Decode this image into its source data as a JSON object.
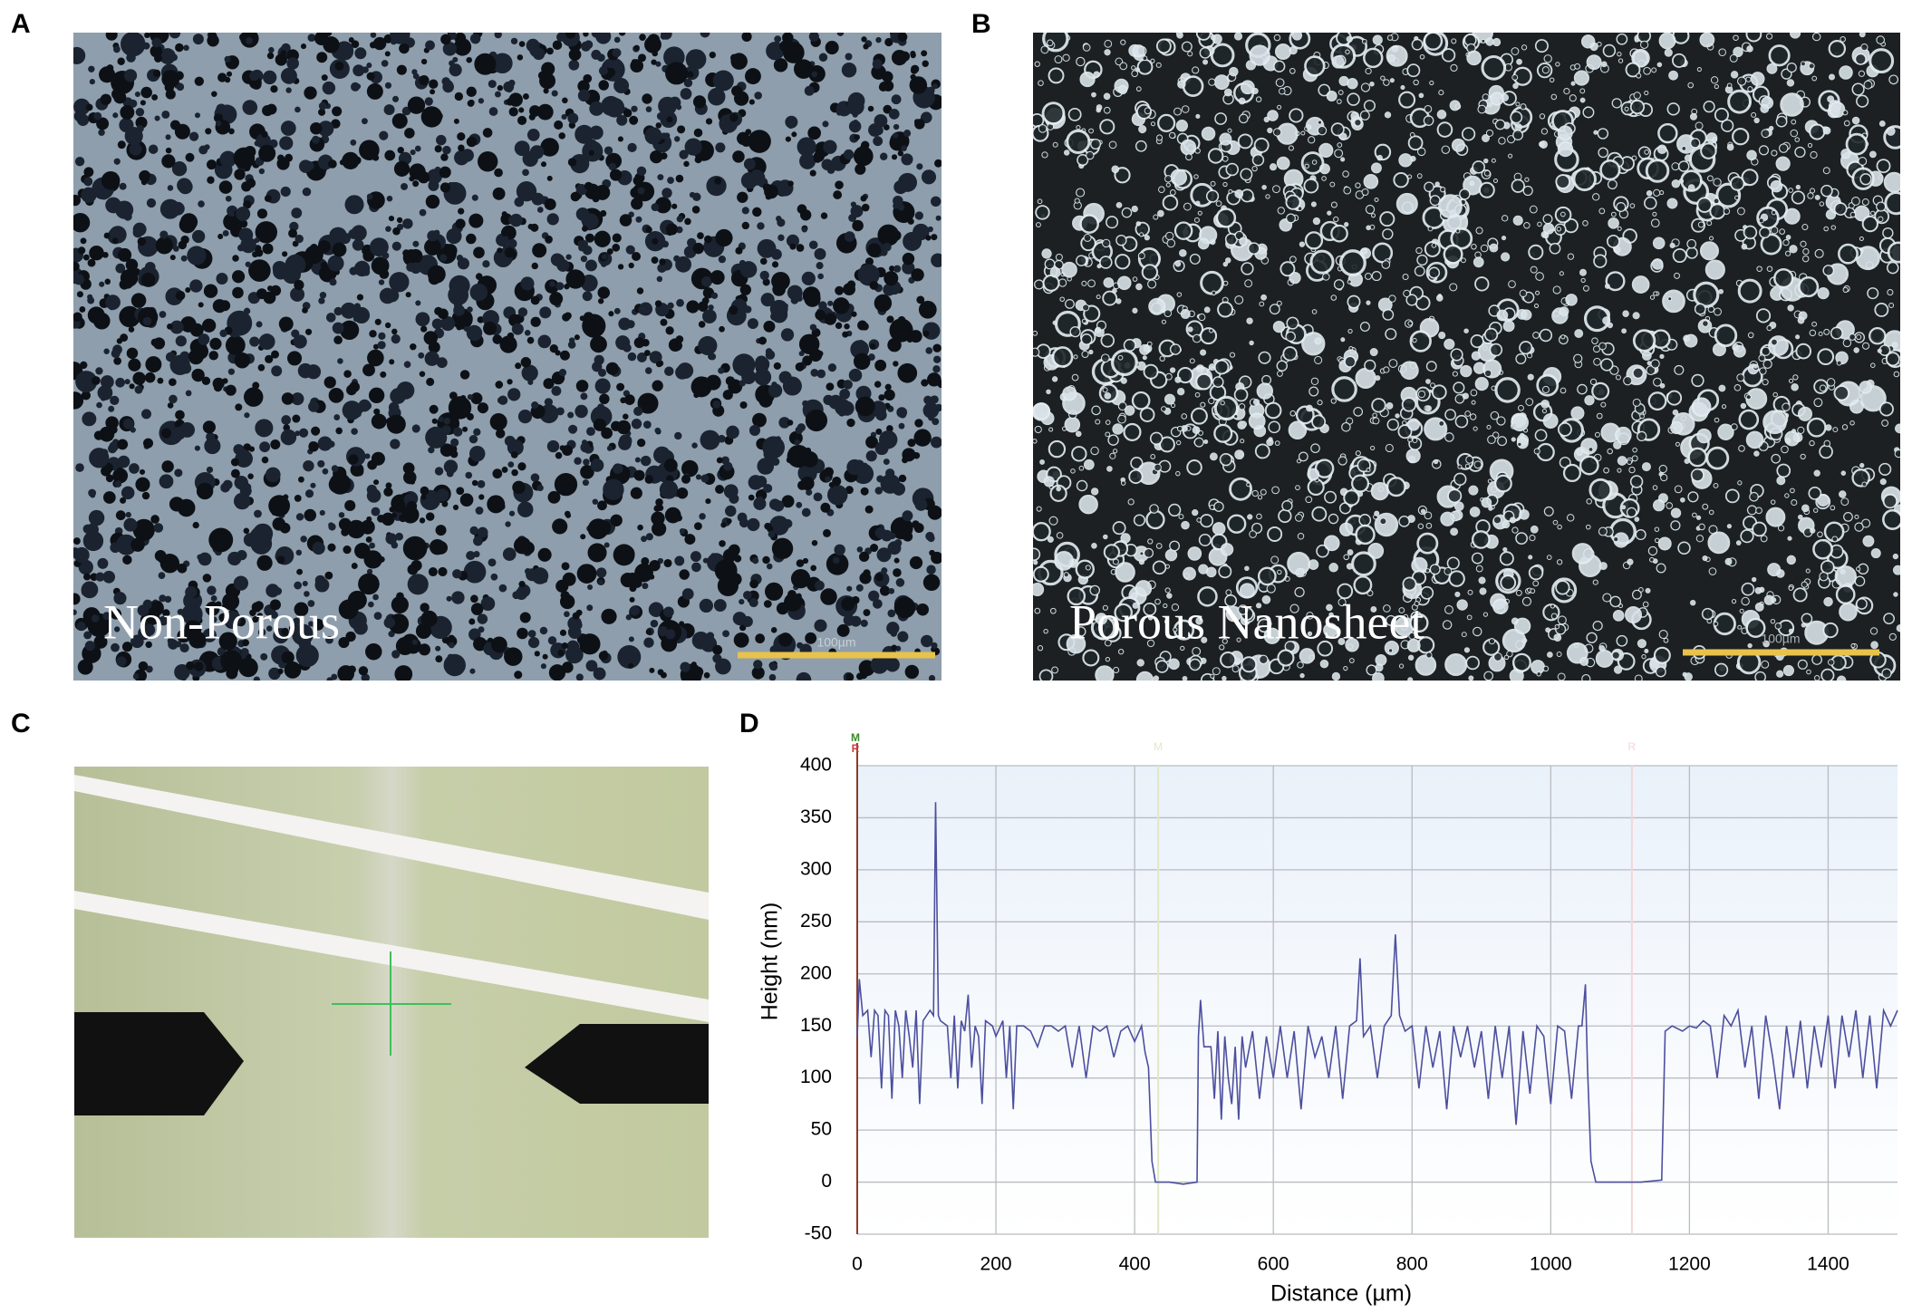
{
  "panels": {
    "a": "A",
    "b": "B",
    "c": "C",
    "d": "D"
  },
  "images": {
    "a_caption": "Non-Porous",
    "a_scale": "100µm",
    "b_caption": "Porous Nanosheet",
    "b_scale": "100µm"
  },
  "chart_data": {
    "type": "line",
    "xlabel": "Distance (µm)",
    "ylabel": "Height (nm)",
    "color": "#4c4f9e",
    "grid": true,
    "xlim": [
      0,
      1500
    ],
    "ylim": [
      -50,
      400
    ],
    "xticks": [
      0,
      200,
      400,
      600,
      800,
      1000,
      1200,
      1400
    ],
    "yticks": [
      -50,
      0,
      50,
      100,
      150,
      200,
      250,
      300,
      350,
      400
    ],
    "axis_markers": [
      "M",
      "R"
    ],
    "markers": [
      {
        "label": "M",
        "x": 434
      },
      {
        "label": "R",
        "x": 1117
      }
    ],
    "x": [
      0,
      3,
      8,
      15,
      20,
      25,
      30,
      35,
      40,
      45,
      50,
      55,
      60,
      65,
      70,
      75,
      80,
      85,
      90,
      95,
      100,
      105,
      110,
      113,
      117,
      120,
      130,
      135,
      140,
      145,
      150,
      155,
      160,
      165,
      170,
      175,
      180,
      185,
      195,
      200,
      210,
      215,
      220,
      225,
      230,
      240,
      250,
      260,
      270,
      280,
      290,
      300,
      310,
      320,
      330,
      340,
      350,
      360,
      370,
      380,
      390,
      400,
      410,
      415,
      420,
      425,
      430,
      450,
      470,
      490,
      492,
      495,
      500,
      510,
      515,
      520,
      525,
      530,
      535,
      540,
      545,
      550,
      555,
      560,
      570,
      580,
      590,
      600,
      610,
      620,
      630,
      640,
      650,
      660,
      670,
      680,
      690,
      700,
      710,
      720,
      725,
      730,
      740,
      750,
      760,
      770,
      776,
      782,
      790,
      800,
      810,
      820,
      830,
      840,
      850,
      860,
      870,
      880,
      890,
      900,
      910,
      920,
      930,
      940,
      950,
      960,
      970,
      980,
      990,
      1000,
      1010,
      1020,
      1030,
      1040,
      1045,
      1050,
      1053,
      1058,
      1065,
      1100,
      1130,
      1160,
      1165,
      1175,
      1190,
      1200,
      1210,
      1220,
      1230,
      1240,
      1250,
      1260,
      1270,
      1280,
      1290,
      1300,
      1310,
      1320,
      1330,
      1340,
      1350,
      1360,
      1370,
      1380,
      1390,
      1400,
      1410,
      1420,
      1430,
      1440,
      1450,
      1460,
      1470,
      1480,
      1490,
      1500
    ],
    "values": [
      140,
      195,
      160,
      165,
      120,
      165,
      160,
      90,
      165,
      160,
      80,
      165,
      150,
      100,
      165,
      140,
      110,
      165,
      75,
      155,
      160,
      165,
      160,
      365,
      160,
      155,
      150,
      100,
      160,
      90,
      155,
      145,
      180,
      110,
      150,
      140,
      75,
      155,
      150,
      140,
      155,
      100,
      150,
      70,
      150,
      150,
      145,
      130,
      150,
      150,
      145,
      150,
      110,
      150,
      100,
      150,
      145,
      150,
      120,
      145,
      150,
      135,
      150,
      125,
      110,
      20,
      0,
      0,
      -2,
      0,
      140,
      175,
      130,
      130,
      80,
      145,
      60,
      140,
      100,
      75,
      130,
      60,
      140,
      110,
      145,
      80,
      140,
      100,
      150,
      100,
      145,
      70,
      150,
      120,
      140,
      100,
      150,
      80,
      150,
      155,
      215,
      140,
      150,
      100,
      150,
      160,
      238,
      160,
      145,
      150,
      90,
      150,
      110,
      145,
      70,
      150,
      120,
      150,
      110,
      145,
      80,
      150,
      100,
      150,
      55,
      145,
      85,
      150,
      140,
      75,
      150,
      145,
      80,
      150,
      150,
      190,
      110,
      20,
      0,
      0,
      0,
      2,
      145,
      150,
      145,
      150,
      148,
      155,
      150,
      100,
      160,
      150,
      165,
      110,
      150,
      80,
      160,
      120,
      70,
      150,
      100,
      155,
      90,
      150,
      110,
      160,
      90,
      160,
      120,
      165,
      100,
      160,
      90,
      165,
      150,
      165
    ]
  }
}
